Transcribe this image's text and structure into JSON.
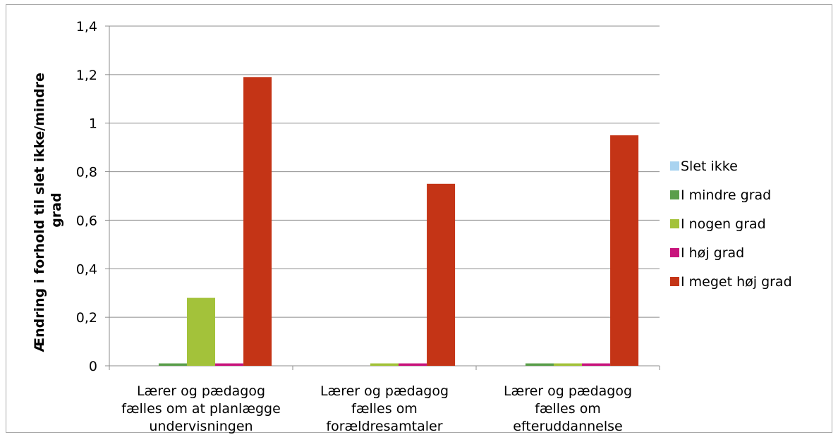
{
  "chart_data": {
    "type": "bar",
    "title": "",
    "xlabel": "",
    "ylabel_lines": [
      "Ændring i forhold til slet ikke/mindre",
      "grad"
    ],
    "ylim": [
      0,
      1.4
    ],
    "yticks": [
      "0",
      "0,2",
      "0,4",
      "0,6",
      "0,8",
      "1",
      "1,2",
      "1,4"
    ],
    "grid": true,
    "legend_position": "right",
    "categories": [
      [
        "Lærer og pædagog",
        "fælles om at planlægge",
        "undervisningen"
      ],
      [
        "Lærer og pædagog",
        "fælles om",
        "forældresamtaler"
      ],
      [
        "Lærer og pædagog",
        "fælles om",
        "efteruddannelse"
      ]
    ],
    "series": [
      {
        "name": "Slet ikke",
        "color": "#a9d3f0",
        "values": [
          0,
          0,
          0
        ]
      },
      {
        "name": "I mindre grad",
        "color": "#5a9e4b",
        "values": [
          0.01,
          0,
          0.01
        ]
      },
      {
        "name": "I nogen grad",
        "color": "#a3c23a",
        "values": [
          0.28,
          0.01,
          0.01
        ]
      },
      {
        "name": "I høj grad",
        "color": "#c8147c",
        "values": [
          0.01,
          0.01,
          0.01
        ]
      },
      {
        "name": "I meget høj grad",
        "color": "#c43416",
        "values": [
          1.19,
          0.75,
          0.95
        ]
      }
    ]
  }
}
